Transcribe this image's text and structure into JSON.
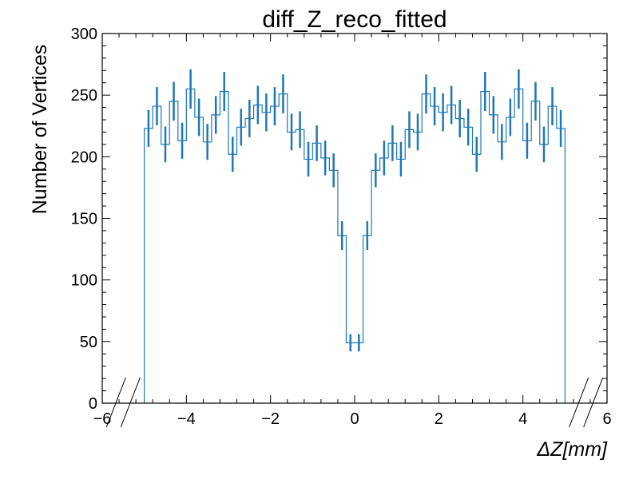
{
  "chart_data": {
    "type": "histogram",
    "title": "diff_Z_reco_fitted",
    "ylabel": "Number of Vertices",
    "xlabel_prefix": "ΔZ",
    "xlabel_unit": "[mm]",
    "xlim": [
      -6,
      6
    ],
    "ylim": [
      0,
      300
    ],
    "xticks": [
      -6,
      -4,
      -2,
      0,
      2,
      4,
      6
    ],
    "xtick_labels": [
      "−6",
      "−4",
      "−2",
      "0",
      "2",
      "4",
      "6"
    ],
    "yticks": [
      0,
      50,
      100,
      150,
      200,
      250,
      300
    ],
    "ytick_labels": [
      "0",
      "50",
      "100",
      "150",
      "200",
      "250",
      "300"
    ],
    "grid": false,
    "bin_edges": [
      -5.0,
      -4.8,
      -4.6,
      -4.4,
      -4.2,
      -4.0,
      -3.8,
      -3.6,
      -3.4,
      -3.2,
      -3.0,
      -2.8,
      -2.6,
      -2.4,
      -2.2,
      -2.0,
      -1.8,
      -1.6,
      -1.4,
      -1.2,
      -1.0,
      -0.8,
      -0.6,
      -0.4,
      -0.2,
      0.0,
      0.2,
      0.4,
      0.6,
      0.8,
      1.0,
      1.2,
      1.4,
      1.6,
      1.8,
      2.0,
      2.2,
      2.4,
      2.6,
      2.8,
      3.0,
      3.2,
      3.4,
      3.6,
      3.8,
      4.0,
      4.2,
      4.4,
      4.6,
      4.8,
      5.0
    ],
    "counts": [
      223,
      241,
      210,
      245,
      213,
      255,
      232,
      212,
      234,
      253,
      202,
      224,
      231,
      242,
      236,
      241,
      251,
      220,
      222,
      198,
      211,
      199,
      189,
      136,
      49,
      49,
      136,
      189,
      199,
      211,
      198,
      222,
      220,
      251,
      241,
      236,
      242,
      231,
      224,
      202,
      253,
      234,
      212,
      232,
      255,
      213,
      245,
      210,
      241,
      223
    ],
    "colors": {
      "series": "#1f77b4",
      "axis": "#000000"
    }
  }
}
